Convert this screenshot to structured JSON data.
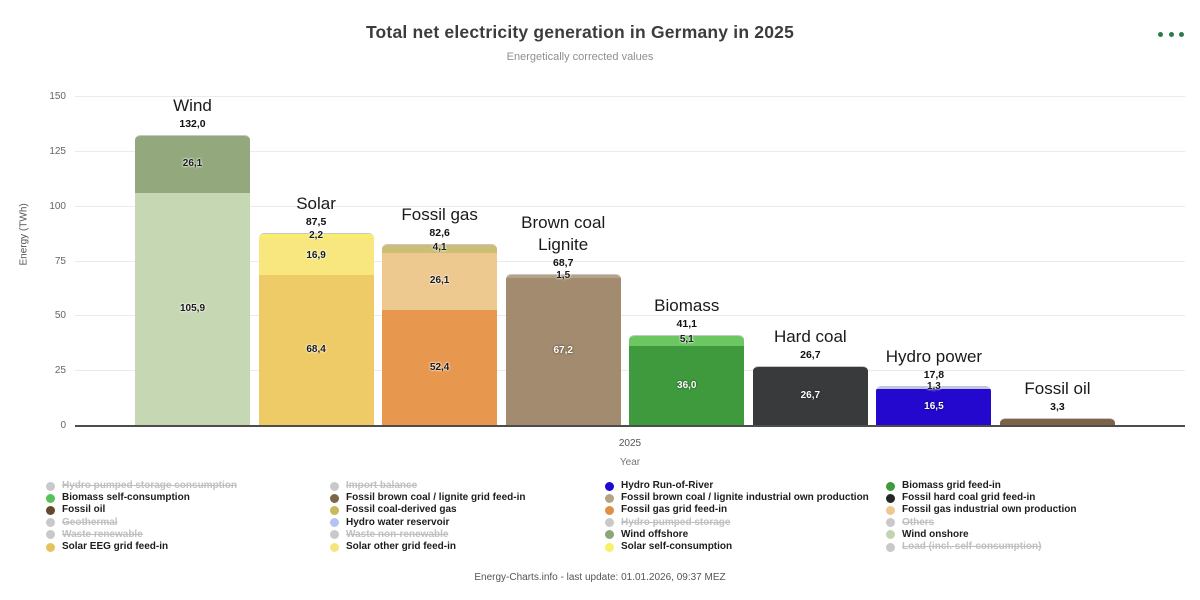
{
  "chart_data": {
    "type": "bar",
    "stacked": true,
    "title": "Total net electricity generation in Germany in 2025",
    "subtitle": "Energetically corrected values",
    "xlabel": "Year",
    "x_tick": "2025",
    "ylabel": "Energy (TWh)",
    "ylim": [
      0,
      150
    ],
    "ytick_step": 25,
    "grid": true,
    "bars": [
      {
        "name": "Wind",
        "total_display": "132,0",
        "total_value": 132.0,
        "segments": [
          {
            "label": "Wind onshore",
            "value": 105.9,
            "display": "105,9",
            "color": "#c6d7b3"
          },
          {
            "label": "Wind offshore",
            "value": 26.1,
            "display": "26,1",
            "color": "#93a97d"
          }
        ]
      },
      {
        "name": "Solar",
        "total_display": "87,5",
        "total_value": 87.5,
        "segments": [
          {
            "label": "Solar EEG grid feed-in",
            "value": 68.4,
            "display": "68,4",
            "color": "#eecb66"
          },
          {
            "label": "Solar other grid feed-in",
            "value": 16.9,
            "display": "16,9",
            "color": "#f7e77e"
          },
          {
            "label": "Solar self-consumption",
            "value": 2.2,
            "display": "2,2",
            "color": "#f8ee6e"
          }
        ]
      },
      {
        "name": "Fossil gas",
        "total_display": "82,6",
        "total_value": 82.6,
        "segments": [
          {
            "label": "Fossil gas grid feed-in",
            "value": 52.4,
            "display": "52,4",
            "color": "#e8974e"
          },
          {
            "label": "Fossil gas industrial own production",
            "value": 26.1,
            "display": "26,1",
            "color": "#edc88f"
          },
          {
            "label": "Fossil coal-derived gas",
            "value": 4.1,
            "display": "4,1",
            "color": "#ccbe74"
          }
        ]
      },
      {
        "name": "Brown coal\nLignite",
        "total_display": "68,7",
        "total_value": 68.7,
        "segments": [
          {
            "label": "Fossil brown coal / lignite grid feed-in",
            "value": 67.2,
            "display": "67,2",
            "color": "#a28b6e"
          },
          {
            "label": "Fossil brown coal / lignite industrial own production",
            "value": 1.5,
            "display": "1,5",
            "color": "#b3a285"
          }
        ]
      },
      {
        "name": "Biomass",
        "total_display": "41,1",
        "total_value": 41.1,
        "segments": [
          {
            "label": "Biomass grid feed-in",
            "value": 36.0,
            "display": "36,0",
            "color": "#3f9a3d"
          },
          {
            "label": "Biomass self-consumption",
            "value": 5.1,
            "display": "5,1",
            "color": "#6cc763"
          }
        ]
      },
      {
        "name": "Hard coal",
        "total_display": "26,7",
        "total_value": 26.7,
        "segments": [
          {
            "label": "Fossil hard coal grid feed-in",
            "value": 26.7,
            "display": "26,7",
            "color": "#393a3c"
          }
        ]
      },
      {
        "name": "Hydro power",
        "total_display": "17,8",
        "total_value": 17.8,
        "segments": [
          {
            "label": "Hydro Run-of-River",
            "value": 16.5,
            "display": "16,5",
            "color": "#2408cd"
          },
          {
            "label": "Hydro water reservoir",
            "value": 1.3,
            "display": "1,3",
            "color": "#b9c6f0"
          }
        ]
      },
      {
        "name": "Fossil oil",
        "total_display": "3,3",
        "total_value": 3.3,
        "segments": [
          {
            "label": "Fossil oil",
            "value": 3.3,
            "display": "",
            "color": "#7c6347"
          }
        ]
      }
    ],
    "legend_columns": [
      {
        "items": [
          {
            "label": "Hydro pumped storage consumption",
            "color": "#c9c9c9",
            "disabled": true
          },
          {
            "label": "Biomass self-consumption",
            "color": "#57c25a",
            "disabled": false
          },
          {
            "label": "Fossil oil",
            "color": "#63492c",
            "disabled": false
          },
          {
            "label": "Geothermal",
            "color": "#c9c9c9",
            "disabled": true
          },
          {
            "label": "Waste renewable",
            "color": "#c9c9c9",
            "disabled": true
          },
          {
            "label": "Solar EEG grid feed-in",
            "color": "#e6c25c",
            "disabled": false
          }
        ]
      },
      {
        "items": [
          {
            "label": "Import balance",
            "color": "#c9c9c9",
            "disabled": true
          },
          {
            "label": "Fossil brown coal / lignite grid feed-in",
            "color": "#7c6549",
            "disabled": false
          },
          {
            "label": "Fossil coal-derived gas",
            "color": "#c7b75e",
            "disabled": false
          },
          {
            "label": "Hydro water reservoir",
            "color": "#b4c4f2",
            "disabled": false
          },
          {
            "label": "Waste non-renewable",
            "color": "#c9c9c9",
            "disabled": true
          },
          {
            "label": "Solar other grid feed-in",
            "color": "#f6e57e",
            "disabled": false
          }
        ]
      },
      {
        "items": [
          {
            "label": "Hydro Run-of-River",
            "color": "#1c0ad2",
            "disabled": false
          },
          {
            "label": "Fossil brown coal / lignite industrial own production",
            "color": "#b5a384",
            "disabled": false
          },
          {
            "label": "Fossil gas grid feed-in",
            "color": "#e08f44",
            "disabled": false
          },
          {
            "label": "Hydro pumped storage",
            "color": "#c9c9c9",
            "disabled": true
          },
          {
            "label": "Wind offshore",
            "color": "#8ca674",
            "disabled": false
          },
          {
            "label": "Solar self-consumption",
            "color": "#f8f06a",
            "disabled": false
          }
        ]
      },
      {
        "items": [
          {
            "label": "Biomass grid feed-in",
            "color": "#3f9a3d",
            "disabled": false
          },
          {
            "label": "Fossil hard coal grid feed-in",
            "color": "#262626",
            "disabled": false
          },
          {
            "label": "Fossil gas industrial own production",
            "color": "#eec88e",
            "disabled": false
          },
          {
            "label": "Others",
            "color": "#c9c9c9",
            "disabled": true
          },
          {
            "label": "Wind onshore",
            "color": "#c3d5b0",
            "disabled": false
          },
          {
            "label": "Load (incl. self-consumption)",
            "color": "#c9c9c9",
            "disabled": true
          }
        ]
      }
    ]
  },
  "footer": {
    "text": "Energy-Charts.info - last update: 01.01.2026, 09:37 MEZ"
  }
}
